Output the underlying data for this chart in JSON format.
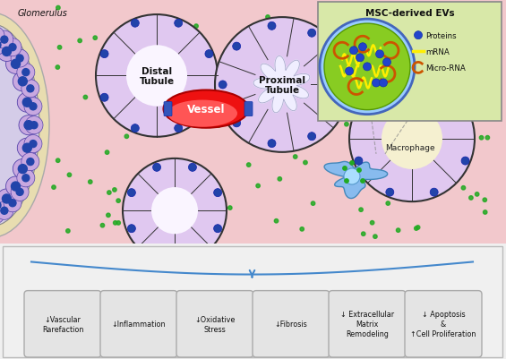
{
  "bg_top_color": "#f2c8cc",
  "bg_bottom_color": "#f0f0f0",
  "title_inset": "MSC-derived EVs",
  "inset_bg": "#d8e8a8",
  "inset_border": "#4466bb",
  "glomerulus_label": "Glomerulus",
  "distal_tubule_label": "Distal\nTubule",
  "proximal_tubule_label": "Proximal\nTubule",
  "vessel_label": "Vessel",
  "macrophage_label": "Macrophage",
  "legend_proteins": "Proteins",
  "legend_mRNA": "mRNA",
  "legend_microRNA": "Micro-RNA",
  "bottom_labels": [
    "↓Vascular\nRarefaction",
    "↓Inflammation",
    "↓Oxidative\nStress",
    "↓Fibrosis",
    "↓ Extracellular\nMatrix\nRemodeling",
    "↓ Apoptosis\n&\n↑Cell Proliferation"
  ],
  "tubule_fill": "#e0c8f0",
  "tubule_outline": "#333333",
  "cell_blue_dot": "#2244aa",
  "green_dot": "#22aa22",
  "vessel_fill": "#ee1111",
  "vessel_outline": "#aa0000",
  "macrophage_fill": "#88bbee",
  "arrow_color": "#4488cc",
  "bottom_bg": "#f0f0f0",
  "glom_outer": "#e8ddb0",
  "glom_inner": "#d4cce8",
  "glom_cell": "#c8a8e0",
  "glom_nucleus": "#2244aa"
}
